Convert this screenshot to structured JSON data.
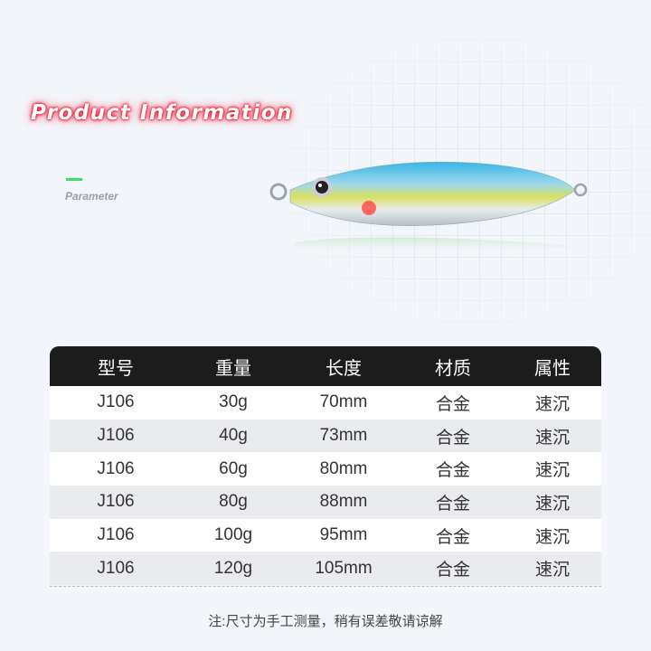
{
  "header": {
    "title": "Product Information",
    "subtitle": "Parameter"
  },
  "colors": {
    "title_glow": "#e0102a",
    "accent_dash": "#3ddc6a",
    "table_header_bg": "#1c1c1c"
  },
  "product_image": "fishing-jig-lure",
  "table": {
    "columns": [
      "型号",
      "重量",
      "长度",
      "材质",
      "属性"
    ],
    "rows": [
      [
        "J106",
        "30g",
        "70mm",
        "合金",
        "速沉"
      ],
      [
        "J106",
        "40g",
        "73mm",
        "合金",
        "速沉"
      ],
      [
        "J106",
        "60g",
        "80mm",
        "合金",
        "速沉"
      ],
      [
        "J106",
        "80g",
        "88mm",
        "合金",
        "速沉"
      ],
      [
        "J106",
        "100g",
        "95mm",
        "合金",
        "速沉"
      ],
      [
        "J106",
        "120g",
        "105mm",
        "合金",
        "速沉"
      ]
    ]
  },
  "note": "注:尺寸为手工测量，稍有误差敬请谅解"
}
